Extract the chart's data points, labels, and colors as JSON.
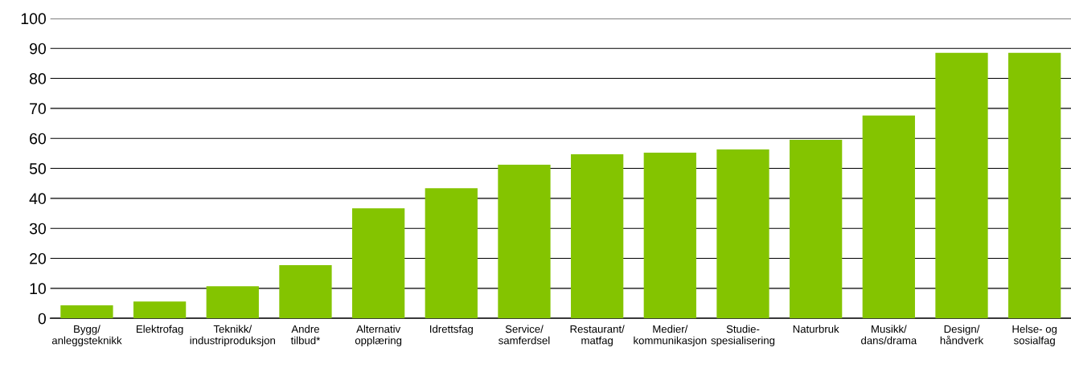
{
  "chart_data": {
    "type": "bar",
    "categories": [
      "Bygg/\nanleggsteknikk",
      "Elektrofag",
      "Teknikk/\nindustriproduksjon",
      "Andre\ntilbud*",
      "Alternativ\nopplæring",
      "Idrettsfag",
      "Service/\nsamferdsel",
      "Restaurant/\nmatfag",
      "Medier/\nkommunikasjon",
      "Studie-\nspesialisering",
      "Naturbruk",
      "Musikk/\ndans/drama",
      "Design/\nhåndverk",
      "Helse- og\nsosialfag"
    ],
    "values": [
      4.3,
      5.6,
      10.7,
      17.7,
      36.7,
      43.4,
      51.2,
      54.7,
      55.2,
      56.3,
      59.5,
      67.6,
      88.5,
      88.5
    ],
    "color": "#84c400",
    "ylim": [
      0,
      100
    ],
    "yticks": [
      0,
      10,
      20,
      30,
      40,
      50,
      60,
      70,
      80,
      90,
      100
    ],
    "grid": "y"
  }
}
